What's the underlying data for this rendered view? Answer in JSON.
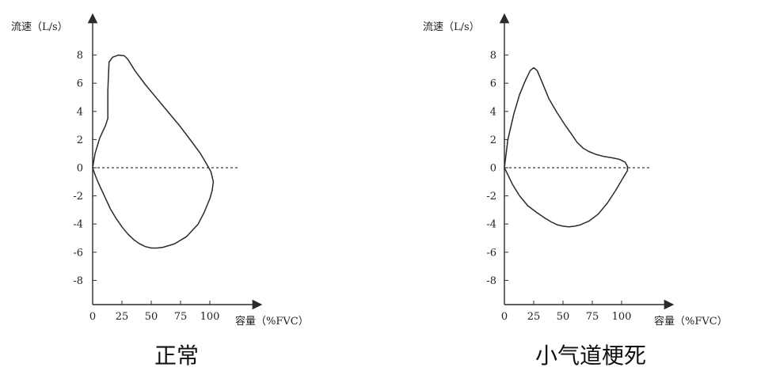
{
  "colors": {
    "curve": "#2a2a2a",
    "axis": "#2a2a2a",
    "zero_line": "#3a3a3a",
    "text": "#222222",
    "background": "#ffffff"
  },
  "chart_data": [
    {
      "type": "line",
      "title": "正常",
      "ylabel": "流速（L/s）",
      "xlabel": "容量（%FVC）",
      "xlim": [
        0,
        100
      ],
      "ylim": [
        -8,
        8
      ],
      "xticks": [
        0,
        25,
        50,
        75,
        100
      ],
      "yticks": [
        8,
        6,
        4,
        2,
        0,
        -2,
        -4,
        -6,
        -8
      ],
      "grid": false,
      "legend": "none",
      "zero_reference_line": {
        "style": "dashed",
        "x_range": [
          0,
          125
        ]
      },
      "series": [
        {
          "closed": true,
          "x": [
            0,
            2,
            6,
            11,
            13,
            13,
            14,
            17,
            22,
            27,
            30,
            36,
            45,
            55,
            65,
            75,
            85,
            92,
            97,
            101,
            103,
            102,
            100,
            95,
            90,
            80,
            70,
            60,
            55,
            50,
            45,
            40,
            35,
            30,
            25,
            20,
            15,
            10,
            5,
            2,
            0
          ],
          "y": [
            0,
            1.0,
            2.1,
            3.0,
            3.5,
            5.5,
            7.5,
            7.85,
            8.0,
            7.95,
            7.7,
            6.9,
            5.9,
            4.9,
            3.9,
            2.9,
            1.8,
            1.0,
            0.3,
            -0.3,
            -1.0,
            -1.6,
            -2.2,
            -3.2,
            -4.0,
            -4.9,
            -5.4,
            -5.65,
            -5.7,
            -5.7,
            -5.6,
            -5.4,
            -5.1,
            -4.7,
            -4.2,
            -3.6,
            -2.9,
            -2.0,
            -1.1,
            -0.5,
            0
          ]
        }
      ]
    },
    {
      "type": "line",
      "title": "小气道梗死",
      "ylabel": "流速（L/s）",
      "xlabel": "容量（%FVC）",
      "xlim": [
        0,
        100
      ],
      "ylim": [
        -8,
        8
      ],
      "xticks": [
        0,
        25,
        50,
        75,
        100
      ],
      "yticks": [
        8,
        6,
        4,
        2,
        0,
        -2,
        -4,
        -6,
        -8
      ],
      "grid": false,
      "legend": "none",
      "zero_reference_line": {
        "style": "dashed",
        "x_range": [
          0,
          125
        ]
      },
      "series": [
        {
          "closed": true,
          "x": [
            0,
            3,
            8,
            13,
            18,
            22,
            25,
            28,
            32,
            38,
            45,
            52,
            58,
            62,
            67,
            72,
            78,
            85,
            92,
            98,
            103,
            105,
            105,
            100,
            95,
            88,
            80,
            72,
            65,
            60,
            55,
            50,
            45,
            40,
            35,
            28,
            20,
            13,
            7,
            3,
            0
          ],
          "y": [
            0,
            2.0,
            3.8,
            5.2,
            6.2,
            6.9,
            7.1,
            6.9,
            6.1,
            4.9,
            3.9,
            3.0,
            2.3,
            1.8,
            1.4,
            1.15,
            0.95,
            0.8,
            0.7,
            0.6,
            0.4,
            0.1,
            -0.2,
            -0.9,
            -1.6,
            -2.5,
            -3.3,
            -3.8,
            -4.05,
            -4.15,
            -4.2,
            -4.15,
            -4.05,
            -3.85,
            -3.6,
            -3.2,
            -2.7,
            -2.0,
            -1.2,
            -0.5,
            0
          ]
        }
      ]
    }
  ]
}
